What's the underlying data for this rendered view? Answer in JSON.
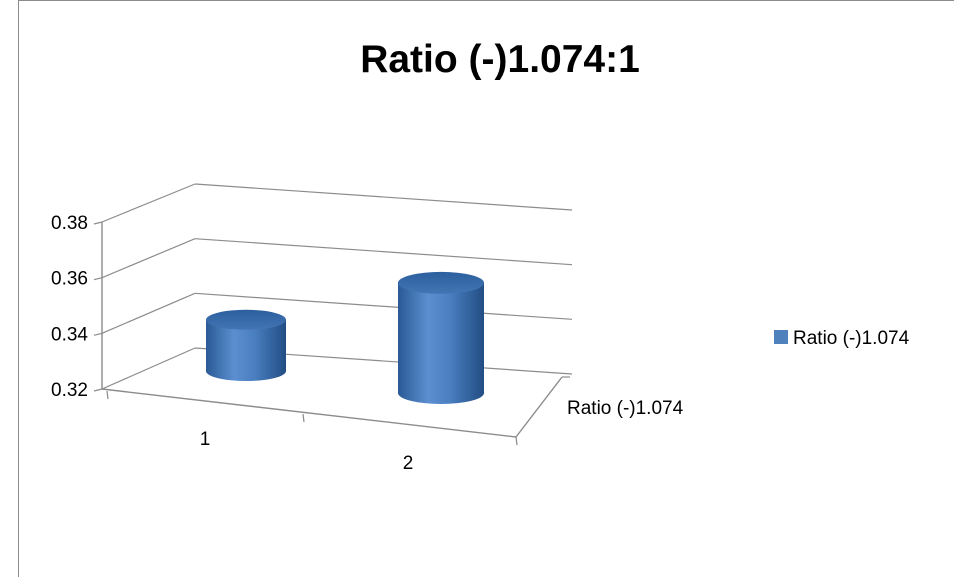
{
  "chart_data": {
    "type": "bar",
    "style": "3d-cylinder",
    "title": "Ratio (-)1.074:1",
    "categories": [
      "1",
      "2"
    ],
    "depth_label": "Ratio (-)1.074",
    "series": [
      {
        "name": "Ratio (-)1.074",
        "values": [
          0.34,
          0.363
        ],
        "color": "#4f81bd"
      }
    ],
    "ylim": [
      0.32,
      0.38
    ],
    "yticks": [
      0.32,
      0.34,
      0.36,
      0.38
    ],
    "ytick_labels": [
      "0.32",
      "0.34",
      "0.36",
      "0.38"
    ],
    "grid": true,
    "legend": "right"
  }
}
